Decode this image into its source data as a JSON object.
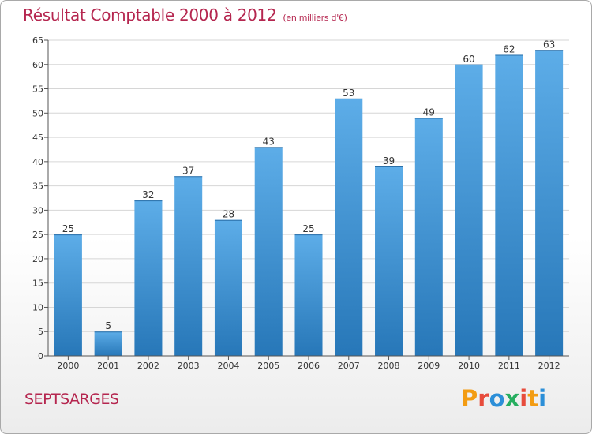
{
  "header": {
    "title": "Résultat Comptable 2000 à 2012",
    "unit": "(en milliers d'€)"
  },
  "footer": {
    "commune": "SEPTSARGES",
    "logo_text": "Proxiti",
    "logo_colors": [
      "#f39c12",
      "#e74c3c",
      "#2c8fd8",
      "#27ae60",
      "#e74c3c",
      "#f39c12",
      "#2c8fd8"
    ]
  },
  "colors": {
    "bar_light": "#5dade8",
    "bar_dark": "#2777b8",
    "title": "#b5264f",
    "grid": "#d6d6d6"
  },
  "chart_data": {
    "type": "bar",
    "title": "Résultat Comptable 2000 à 2012",
    "subtitle": "(en milliers d'€)",
    "categories": [
      "2000",
      "2001",
      "2002",
      "2003",
      "2004",
      "2005",
      "2006",
      "2007",
      "2008",
      "2009",
      "2010",
      "2011",
      "2012"
    ],
    "values": [
      25,
      5,
      32,
      37,
      28,
      43,
      25,
      53,
      39,
      49,
      60,
      62,
      63
    ],
    "ylim": [
      0,
      65
    ],
    "yticks": [
      0,
      5,
      10,
      15,
      20,
      25,
      30,
      35,
      40,
      45,
      50,
      55,
      60,
      65
    ],
    "grid": true,
    "data_labels": true
  }
}
